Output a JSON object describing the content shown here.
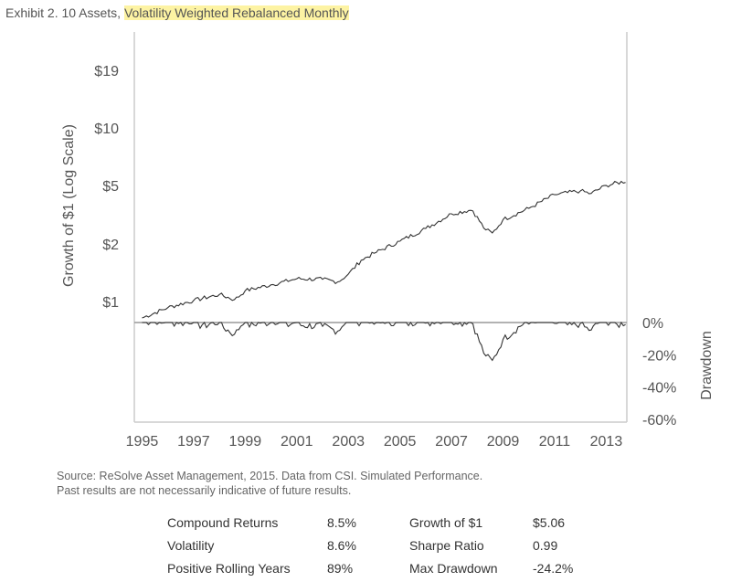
{
  "title": {
    "prefix": "Exhibit 2. 10 Assets, ",
    "highlight": "Volatility Weighted Rebalanced Monthly"
  },
  "colors": {
    "highlight": "#fdf3a3",
    "line": "#333333",
    "axis": "#cccccc"
  },
  "chart_data": {
    "type": "line",
    "ylabel": "Growth of $1 (Log Scale)",
    "y2label": "Drawdown",
    "yscale": "log",
    "yticks": [
      {
        "v": 1,
        "label": "$1"
      },
      {
        "v": 2,
        "label": "$2"
      },
      {
        "v": 5,
        "label": "$5"
      },
      {
        "v": 10,
        "label": "$10"
      },
      {
        "v": 19,
        "label": "$19"
      }
    ],
    "y2ticks": [
      {
        "v": 0,
        "label": "0%"
      },
      {
        "v": -20,
        "label": "-20%"
      },
      {
        "v": -40,
        "label": "-40%"
      },
      {
        "v": -60,
        "label": "-60%"
      }
    ],
    "xticks": [
      1995,
      1997,
      1999,
      2001,
      2003,
      2005,
      2007,
      2009,
      2011,
      2013
    ],
    "xlim": [
      1994.7,
      2013.8
    ],
    "ylim": [
      0.85,
      30
    ],
    "y2lim": [
      -62,
      0
    ],
    "growth": [
      [
        1995.0,
        1.0
      ],
      [
        1996.0,
        1.13
      ],
      [
        1997.0,
        1.23
      ],
      [
        1998.0,
        1.32
      ],
      [
        1998.6,
        1.24
      ],
      [
        1999.0,
        1.38
      ],
      [
        2000.0,
        1.48
      ],
      [
        2001.0,
        1.59
      ],
      [
        2002.0,
        1.58
      ],
      [
        2002.6,
        1.53
      ],
      [
        2003.0,
        1.68
      ],
      [
        2003.5,
        1.98
      ],
      [
        2004.0,
        2.15
      ],
      [
        2005.0,
        2.48
      ],
      [
        2006.0,
        2.88
      ],
      [
        2007.0,
        3.43
      ],
      [
        2007.8,
        3.6
      ],
      [
        2008.3,
        2.85
      ],
      [
        2008.6,
        2.73
      ],
      [
        2009.0,
        3.2
      ],
      [
        2010.0,
        3.66
      ],
      [
        2011.0,
        4.3
      ],
      [
        2012.0,
        4.5
      ],
      [
        2012.4,
        4.35
      ],
      [
        2013.0,
        4.8
      ],
      [
        2013.8,
        5.06
      ]
    ]
  },
  "source": [
    "Source: ReSolve Asset Management, 2015. Data from CSI. Simulated Performance.",
    "Past results are not necessarily indicative of future results."
  ],
  "stats": [
    [
      "Compound Returns",
      "8.5%",
      "Growth of $1",
      "$5.06"
    ],
    [
      "Volatility",
      "8.6%",
      "Sharpe Ratio",
      "0.99"
    ],
    [
      "Positive Rolling Years",
      "89%",
      "Max Drawdown",
      "-24.2%"
    ]
  ]
}
